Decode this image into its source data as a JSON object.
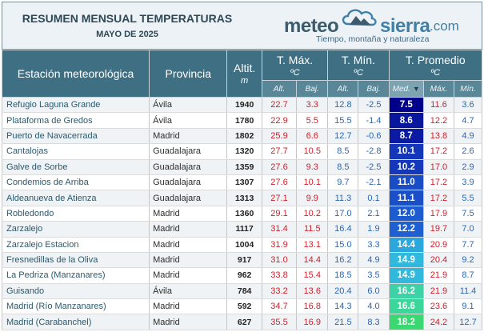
{
  "header": {
    "title": "RESUMEN MENSUAL TEMPERATURAS",
    "subtitle": "MAYO DE 2025"
  },
  "logo": {
    "word1": "meteo",
    "word2": "sierra",
    "word3": ".com",
    "tagline": "Tiempo, montaña y naturaleza"
  },
  "columns": {
    "station": "Estación meteorológica",
    "province": "Provincia",
    "altitude": "Altit.",
    "altitude_unit": "m",
    "tmax": "T. Máx.",
    "tmin": "T. Mín.",
    "tavg": "T. Promedio",
    "unit": "ºC",
    "alt": "Alt.",
    "baj": "Baj.",
    "med": "Med.",
    "max": "Máx.",
    "min": "Mín.",
    "sort_icon": "sort-descending-icon"
  },
  "colors": {
    "header_bg": "#3f6f83",
    "max_text": "#cf1f2a",
    "min_text": "#2a66b8",
    "avg_scale": [
      "#00008b",
      "#1436b8",
      "#1d5bd0",
      "#2a7fd6",
      "#2fa6dc",
      "#36c2d8",
      "#3dd2a0",
      "#3ad870"
    ]
  },
  "rows": [
    {
      "station": "Refugio Laguna Grande",
      "province": "Ávila",
      "alt": "1940",
      "tmax_high": "22.7",
      "tmax_low": "3.3",
      "tmin_high": "12.8",
      "tmin_low": "-2.5",
      "avg": "7.5",
      "avg_max": "11.6",
      "avg_min": "3.6",
      "avg_color": "#00008b"
    },
    {
      "station": "Plataforma de Gredos",
      "province": "Ávila",
      "alt": "1780",
      "tmax_high": "22.9",
      "tmax_low": "5.5",
      "tmin_high": "15.5",
      "tmin_low": "-1.4",
      "avg": "8.6",
      "avg_max": "12.2",
      "avg_min": "4.7",
      "avg_color": "#08179e"
    },
    {
      "station": "Puerto de Navacerrada",
      "province": "Madrid",
      "alt": "1802",
      "tmax_high": "25.9",
      "tmax_low": "6.6",
      "tmin_high": "12.7",
      "tmin_low": "-0.6",
      "avg": "8.7",
      "avg_max": "13.8",
      "avg_min": "4.9",
      "avg_color": "#0a1aa2"
    },
    {
      "station": "Cantalojas",
      "province": "Guadalajara",
      "alt": "1320",
      "tmax_high": "27.7",
      "tmax_low": "10.5",
      "tmin_high": "8.5",
      "tmin_low": "-2.8",
      "avg": "10.1",
      "avg_max": "17.2",
      "avg_min": "2.6",
      "avg_color": "#1436b8"
    },
    {
      "station": "Galve de Sorbe",
      "province": "Guadalajara",
      "alt": "1359",
      "tmax_high": "27.6",
      "tmax_low": "9.3",
      "tmin_high": "8.5",
      "tmin_low": "-2.5",
      "avg": "10.2",
      "avg_max": "17.0",
      "avg_min": "2.9",
      "avg_color": "#1538ba"
    },
    {
      "station": "Condemios de Arriba",
      "province": "Guadalajara",
      "alt": "1307",
      "tmax_high": "27.6",
      "tmax_low": "10.1",
      "tmin_high": "9.7",
      "tmin_low": "-2.1",
      "avg": "11.0",
      "avg_max": "17.2",
      "avg_min": "3.9",
      "avg_color": "#1a4cc6"
    },
    {
      "station": "Aldeanueva de Atienza",
      "province": "Guadalajara",
      "alt": "1313",
      "tmax_high": "27.1",
      "tmax_low": "9.9",
      "tmin_high": "11.3",
      "tmin_low": "0.1",
      "avg": "11.1",
      "avg_max": "17.2",
      "avg_min": "5.5",
      "avg_color": "#1b4fc8"
    },
    {
      "station": "Robledondo",
      "province": "Madrid",
      "alt": "1360",
      "tmax_high": "29.1",
      "tmax_low": "10.2",
      "tmin_high": "17.0",
      "tmin_low": "2.1",
      "avg": "12.0",
      "avg_max": "17.9",
      "avg_min": "7.5",
      "avg_color": "#1d5bd0"
    },
    {
      "station": "Zarzalejo",
      "province": "Madrid",
      "alt": "1117",
      "tmax_high": "31.4",
      "tmax_low": "11.5",
      "tmin_high": "16.4",
      "tmin_low": "1.9",
      "avg": "12.2",
      "avg_max": "19.7",
      "avg_min": "7.0",
      "avg_color": "#1e5fd2"
    },
    {
      "station": "Zarzalejo Estacion",
      "province": "Madrid",
      "alt": "1004",
      "tmax_high": "31.9",
      "tmax_low": "13.1",
      "tmin_high": "15.0",
      "tmin_low": "3.3",
      "avg": "14.4",
      "avg_max": "20.9",
      "avg_min": "7.7",
      "avg_color": "#2ba7dc"
    },
    {
      "station": "Fresnedillas de la Oliva",
      "province": "Madrid",
      "alt": "917",
      "tmax_high": "31.0",
      "tmax_low": "14.4",
      "tmin_high": "16.2",
      "tmin_low": "4.9",
      "avg": "14.9",
      "avg_max": "20.4",
      "avg_min": "9.2",
      "avg_color": "#31b9dd"
    },
    {
      "station": "La Pedriza (Manzanares)",
      "province": "Madrid",
      "alt": "962",
      "tmax_high": "33.8",
      "tmax_low": "15.4",
      "tmin_high": "18.5",
      "tmin_low": "3.5",
      "avg": "14.9",
      "avg_max": "21.9",
      "avg_min": "8.7",
      "avg_color": "#31b9dd"
    },
    {
      "station": "Guisando",
      "province": "Ávila",
      "alt": "784",
      "tmax_high": "33.2",
      "tmax_low": "13.6",
      "tmin_high": "20.4",
      "tmin_low": "6.0",
      "avg": "16.2",
      "avg_max": "21.9",
      "avg_min": "11.4",
      "avg_color": "#3cd2a6"
    },
    {
      "station": "Madrid (Río Manzanares)",
      "province": "Madrid",
      "alt": "592",
      "tmax_high": "34.7",
      "tmax_low": "16.8",
      "tmin_high": "14.3",
      "tmin_low": "4.0",
      "avg": "16.6",
      "avg_max": "23.6",
      "avg_min": "9.1",
      "avg_color": "#3cd69a"
    },
    {
      "station": "Madrid (Carabanchel)",
      "province": "Madrid",
      "alt": "627",
      "tmax_high": "35.5",
      "tmax_low": "16.9",
      "tmin_high": "21.5",
      "tmin_low": "8.3",
      "avg": "18.2",
      "avg_max": "24.2",
      "avg_min": "12.7",
      "avg_color": "#3ad870"
    }
  ]
}
